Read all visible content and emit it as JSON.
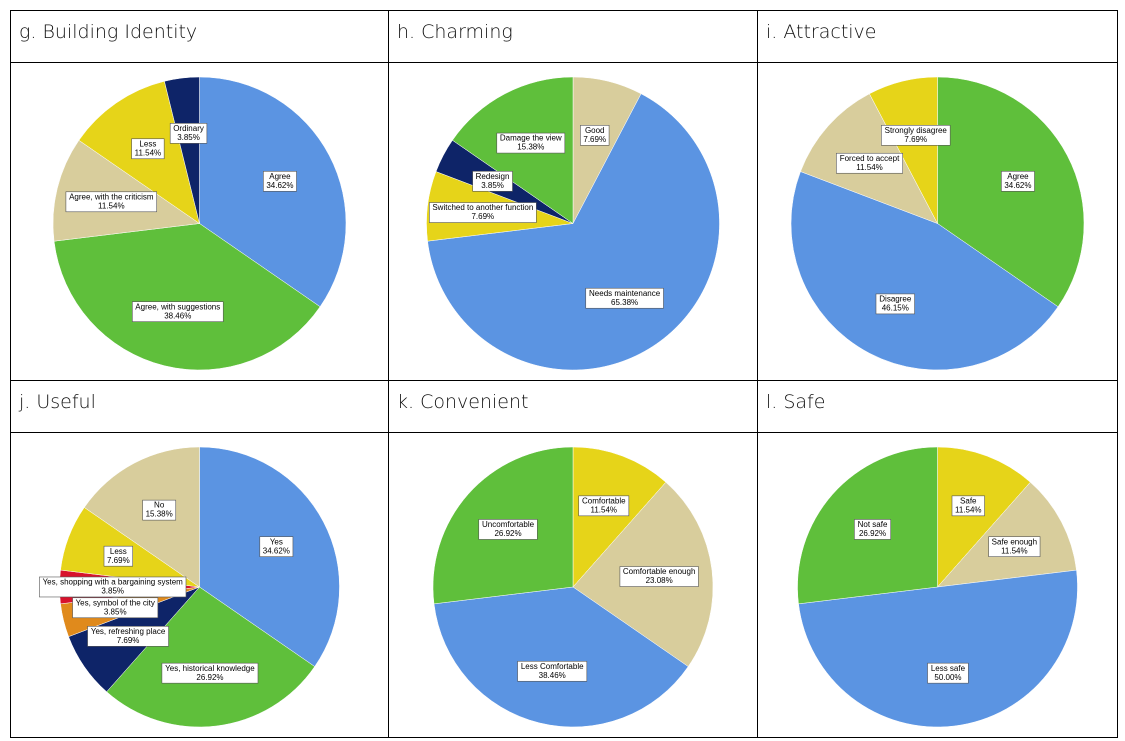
{
  "chart_data": [
    {
      "type": "pie",
      "title": "g. Building Identity",
      "categories": [
        "Agree",
        "Agree, with suggestions",
        "Agree, with the criticism",
        "Less",
        "Ordinary"
      ],
      "values": [
        34.62,
        38.46,
        11.54,
        11.54,
        3.85
      ],
      "value_labels": [
        "34.62%",
        "38.46%",
        "11.54%",
        "11.54%",
        "3.85%"
      ],
      "colors": [
        "#5b94e2",
        "#5fbf3b",
        "#d8cd9c",
        "#e6d419",
        "#0e2468"
      ]
    },
    {
      "type": "pie",
      "title": "h. Charming",
      "categories": [
        "Good",
        "Needs maintenance",
        "Switched to another function",
        "Redesign",
        "Damage the view"
      ],
      "values": [
        7.69,
        65.38,
        7.69,
        3.85,
        15.38
      ],
      "value_labels": [
        "7.69%",
        "65.38%",
        "7.69%",
        "3.85%",
        "15.38%"
      ],
      "colors": [
        "#d8cd9c",
        "#5b94e2",
        "#e6d419",
        "#0e2468",
        "#5fbf3b"
      ]
    },
    {
      "type": "pie",
      "title": "i. Attractive",
      "categories": [
        "Agree",
        "Disagree",
        "Forced to accept",
        "Strongly disagree"
      ],
      "values": [
        34.62,
        46.15,
        11.54,
        7.69
      ],
      "value_labels": [
        "34.62%",
        "46.15%",
        "11.54%",
        "7.69%"
      ],
      "colors": [
        "#5fbf3b",
        "#5b94e2",
        "#d8cd9c",
        "#e6d419"
      ]
    },
    {
      "type": "pie",
      "title": "j. Useful",
      "categories": [
        "Yes",
        "Yes, historical knowledge",
        "Yes, refreshing place",
        "Yes, symbol of the city",
        "Yes, shopping with a bargaining system",
        "Less",
        "No"
      ],
      "values": [
        34.62,
        26.92,
        7.69,
        3.85,
        3.85,
        7.69,
        15.38
      ],
      "value_labels": [
        "34.62%",
        "26.92%",
        "7.69%",
        "3.85%",
        "3.85%",
        "7.69%",
        "15.38%"
      ],
      "colors": [
        "#5b94e2",
        "#5fbf3b",
        "#0e2468",
        "#e08a1c",
        "#d8122c",
        "#e6d419",
        "#d8cd9c"
      ]
    },
    {
      "type": "pie",
      "title": "k. Convenient",
      "categories": [
        "Comfortable",
        "Comfortable enough",
        "Less Comfortable",
        "Uncomfortable"
      ],
      "values": [
        11.54,
        23.08,
        38.46,
        26.92
      ],
      "value_labels": [
        "11.54%",
        "23.08%",
        "38.46%",
        "26.92%"
      ],
      "colors": [
        "#e6d419",
        "#d8cd9c",
        "#5b94e2",
        "#5fbf3b"
      ]
    },
    {
      "type": "pie",
      "title": "l. Safe",
      "categories": [
        "Safe",
        "Safe enough",
        "Less safe",
        "Not safe"
      ],
      "values": [
        11.54,
        11.54,
        50.0,
        26.92
      ],
      "value_labels": [
        "11.54%",
        "11.54%",
        "50.00%",
        "26.92%"
      ],
      "colors": [
        "#e6d419",
        "#d8cd9c",
        "#5b94e2",
        "#5fbf3b"
      ]
    }
  ]
}
